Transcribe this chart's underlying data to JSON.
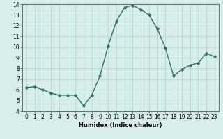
{
  "x": [
    0,
    1,
    2,
    3,
    4,
    5,
    6,
    7,
    8,
    9,
    10,
    11,
    12,
    13,
    14,
    15,
    16,
    17,
    18,
    19,
    20,
    21,
    22,
    23
  ],
  "y": [
    6.2,
    6.3,
    6.0,
    5.7,
    5.5,
    5.5,
    5.5,
    4.5,
    5.5,
    7.3,
    10.1,
    12.4,
    13.7,
    13.9,
    13.5,
    13.0,
    11.7,
    9.9,
    7.3,
    7.9,
    8.3,
    8.5,
    9.4,
    9.1
  ],
  "line_color": "#2e6e65",
  "marker": "D",
  "marker_size": 2.2,
  "bg_color": "#d8eeec",
  "grid_color": "#b0d4d0",
  "xlabel": "Humidex (Indice chaleur)",
  "xlim": [
    -0.5,
    23.5
  ],
  "ylim": [
    4,
    14
  ],
  "yticks": [
    4,
    5,
    6,
    7,
    8,
    9,
    10,
    11,
    12,
    13,
    14
  ],
  "xticks": [
    0,
    1,
    2,
    3,
    4,
    5,
    6,
    7,
    8,
    9,
    10,
    11,
    12,
    13,
    14,
    15,
    16,
    17,
    18,
    19,
    20,
    21,
    22,
    23
  ],
  "xlabel_fontsize": 6.0,
  "tick_fontsize": 5.5,
  "line_width": 1.0
}
